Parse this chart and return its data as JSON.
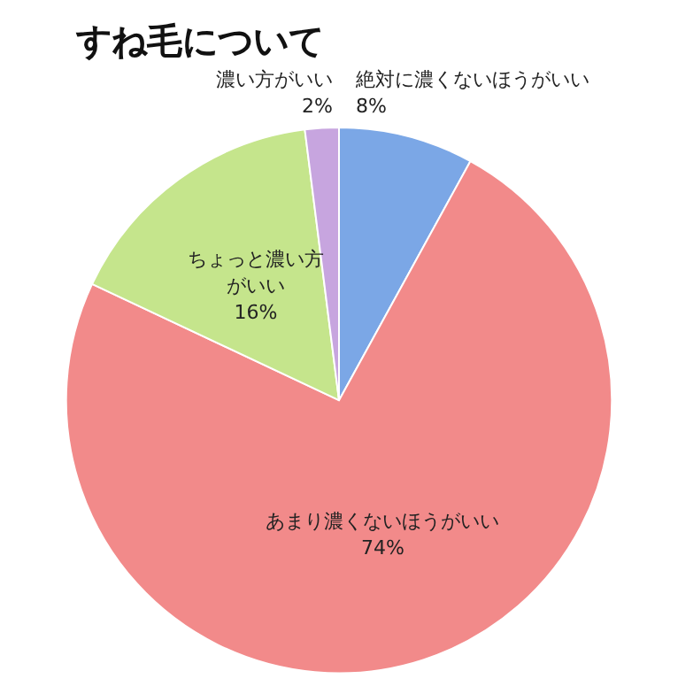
{
  "chart_data": {
    "type": "pie",
    "title": "すね毛について",
    "categories": [
      "絶対に濃くないほうがいい",
      "あまり濃くないほうがいい",
      "ちょっと濃い方がいい",
      "濃い方がいい"
    ],
    "values": [
      8,
      74,
      16,
      2
    ],
    "colors": [
      "#7ba7e6",
      "#f28a8a",
      "#c5e58c",
      "#c7a5df"
    ],
    "value_labels": [
      "8%",
      "74%",
      "16%",
      "2%"
    ]
  }
}
